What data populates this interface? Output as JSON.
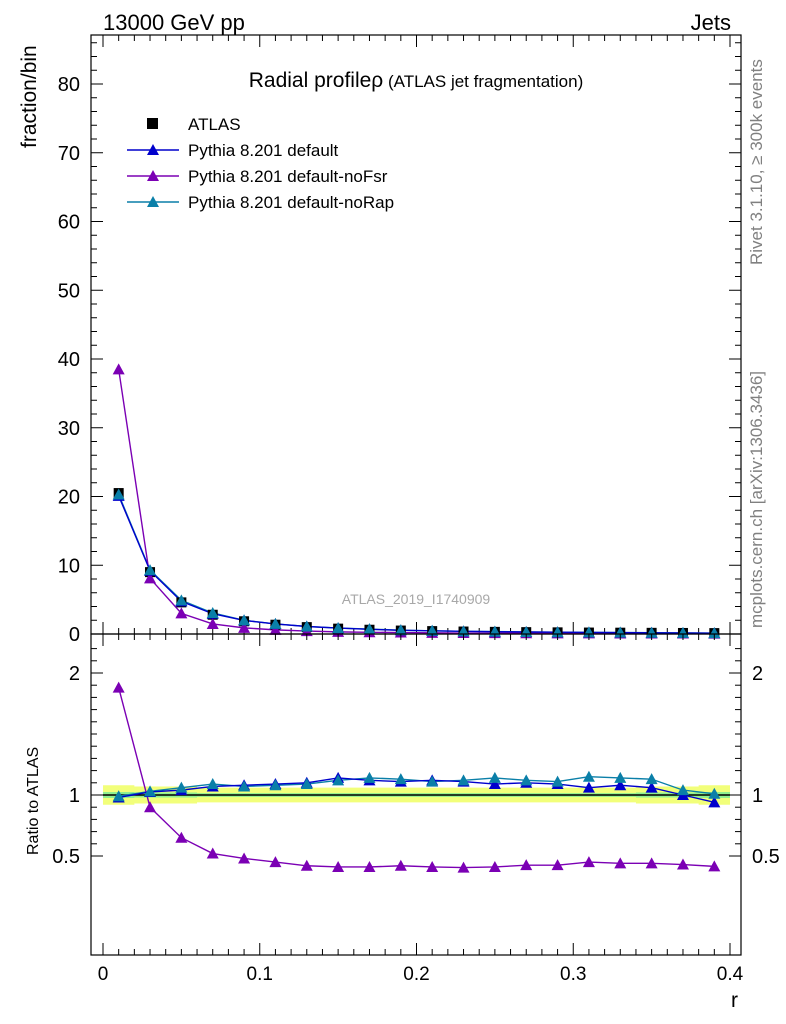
{
  "header": {
    "left": "13000 GeV pp",
    "right": "Jets"
  },
  "side": {
    "top": "Rivet 3.1.10, ≥ 300k events",
    "bottom": "mcplots.cern.ch [arXiv:1306.3436]"
  },
  "title": {
    "main": "Radial profileρ",
    "sub": " (ATLAS jet fragmentation)"
  },
  "watermark": "ATLAS_2019_I1740909",
  "colors": {
    "atlas": "#000000",
    "default": "#0000cc",
    "noFsr": "#7b00b4",
    "noRap": "#0a7fa8",
    "band_outer": "#f2ff7a",
    "band_inner": "#8ff08f"
  },
  "chart_data": [
    {
      "type": "scatter",
      "ylabel": "fraction/bin",
      "xlim": [
        0,
        0.4
      ],
      "ylim": [
        0,
        87
      ],
      "yticks": [
        "0",
        "10",
        "20",
        "30",
        "40",
        "50",
        "60",
        "70",
        "80"
      ],
      "legend": [
        "ATLAS",
        "Pythia 8.201 default",
        "Pythia 8.201 default-noFsr",
        "Pythia 8.201 default-noRap"
      ],
      "x": [
        0.01,
        0.03,
        0.05,
        0.07,
        0.09,
        0.11,
        0.13,
        0.15,
        0.17,
        0.19,
        0.21,
        0.23,
        0.25,
        0.27,
        0.29,
        0.31,
        0.33,
        0.35,
        0.37,
        0.39
      ],
      "series": [
        {
          "name": "ATLAS",
          "values": [
            20.5,
            9.0,
            4.6,
            2.8,
            1.85,
            1.35,
            1.0,
            0.78,
            0.62,
            0.5,
            0.42,
            0.36,
            0.31,
            0.27,
            0.24,
            0.21,
            0.19,
            0.17,
            0.15,
            0.13
          ]
        },
        {
          "name": "Pythia 8.201 default",
          "values": [
            20.1,
            9.2,
            4.75,
            2.95,
            1.98,
            1.46,
            1.09,
            0.86,
            0.68,
            0.54,
            0.46,
            0.39,
            0.33,
            0.29,
            0.26,
            0.22,
            0.2,
            0.18,
            0.15,
            0.12
          ]
        },
        {
          "name": "Pythia 8.201 default-noFsr",
          "values": [
            38.5,
            8.1,
            3.0,
            1.46,
            0.89,
            0.6,
            0.42,
            0.31,
            0.25,
            0.21,
            0.17,
            0.14,
            0.12,
            0.11,
            0.1,
            0.1,
            0.08,
            0.07,
            0.064,
            0.053
          ]
        },
        {
          "name": "Pythia 8.201 default-noRap",
          "values": [
            20.3,
            9.3,
            4.9,
            3.06,
            1.99,
            1.47,
            1.1,
            0.86,
            0.71,
            0.56,
            0.47,
            0.39,
            0.35,
            0.3,
            0.26,
            0.24,
            0.21,
            0.19,
            0.16,
            0.13
          ]
        }
      ]
    },
    {
      "type": "line",
      "xlabel": "r",
      "ylabel": "Ratio to ATLAS",
      "xlim": [
        0,
        0.4
      ],
      "ylim": [
        0.33,
        2.25
      ],
      "xticks": [
        "0",
        "0.1",
        "0.2",
        "0.3",
        "0.4"
      ],
      "yticks": [
        "0.5",
        "1",
        "2"
      ],
      "x": [
        0.01,
        0.03,
        0.05,
        0.07,
        0.09,
        0.11,
        0.13,
        0.15,
        0.17,
        0.19,
        0.21,
        0.23,
        0.25,
        0.27,
        0.29,
        0.31,
        0.33,
        0.35,
        0.37,
        0.39
      ],
      "series": [
        {
          "name": "Pythia 8.201 default",
          "values": [
            0.98,
            1.025,
            1.04,
            1.07,
            1.08,
            1.09,
            1.1,
            1.14,
            1.12,
            1.11,
            1.12,
            1.11,
            1.09,
            1.1,
            1.09,
            1.06,
            1.08,
            1.06,
            1.0,
            0.94
          ]
        },
        {
          "name": "Pythia 8.201 default-noFsr",
          "values": [
            1.88,
            0.9,
            0.65,
            0.52,
            0.48,
            0.45,
            0.42,
            0.41,
            0.41,
            0.42,
            0.41,
            0.405,
            0.41,
            0.425,
            0.425,
            0.45,
            0.44,
            0.44,
            0.43,
            0.415
          ]
        },
        {
          "name": "Pythia 8.201 default-noRap",
          "values": [
            0.99,
            1.03,
            1.06,
            1.09,
            1.07,
            1.08,
            1.09,
            1.12,
            1.14,
            1.13,
            1.11,
            1.12,
            1.14,
            1.12,
            1.11,
            1.15,
            1.14,
            1.13,
            1.04,
            1.01
          ]
        }
      ],
      "band": {
        "outer": [
          [
            0.92,
            1.08
          ],
          [
            0.93,
            1.07
          ],
          [
            0.93,
            1.07
          ],
          [
            0.94,
            1.06
          ],
          [
            0.94,
            1.06
          ],
          [
            0.94,
            1.06
          ],
          [
            0.94,
            1.06
          ],
          [
            0.94,
            1.06
          ],
          [
            0.94,
            1.06
          ],
          [
            0.94,
            1.06
          ],
          [
            0.94,
            1.06
          ],
          [
            0.94,
            1.06
          ],
          [
            0.94,
            1.06
          ],
          [
            0.94,
            1.06
          ],
          [
            0.94,
            1.06
          ],
          [
            0.94,
            1.06
          ],
          [
            0.94,
            1.06
          ],
          [
            0.93,
            1.07
          ],
          [
            0.93,
            1.07
          ],
          [
            0.92,
            1.08
          ]
        ],
        "inner": [
          [
            0.975,
            1.025
          ],
          [
            0.98,
            1.02
          ],
          [
            0.98,
            1.02
          ],
          [
            0.985,
            1.015
          ],
          [
            0.985,
            1.015
          ],
          [
            0.985,
            1.015
          ],
          [
            0.985,
            1.015
          ],
          [
            0.985,
            1.015
          ],
          [
            0.985,
            1.015
          ],
          [
            0.985,
            1.015
          ],
          [
            0.985,
            1.015
          ],
          [
            0.985,
            1.015
          ],
          [
            0.985,
            1.015
          ],
          [
            0.985,
            1.015
          ],
          [
            0.985,
            1.015
          ],
          [
            0.985,
            1.015
          ],
          [
            0.985,
            1.015
          ],
          [
            0.98,
            1.02
          ],
          [
            0.98,
            1.02
          ],
          [
            0.975,
            1.025
          ]
        ]
      }
    }
  ]
}
